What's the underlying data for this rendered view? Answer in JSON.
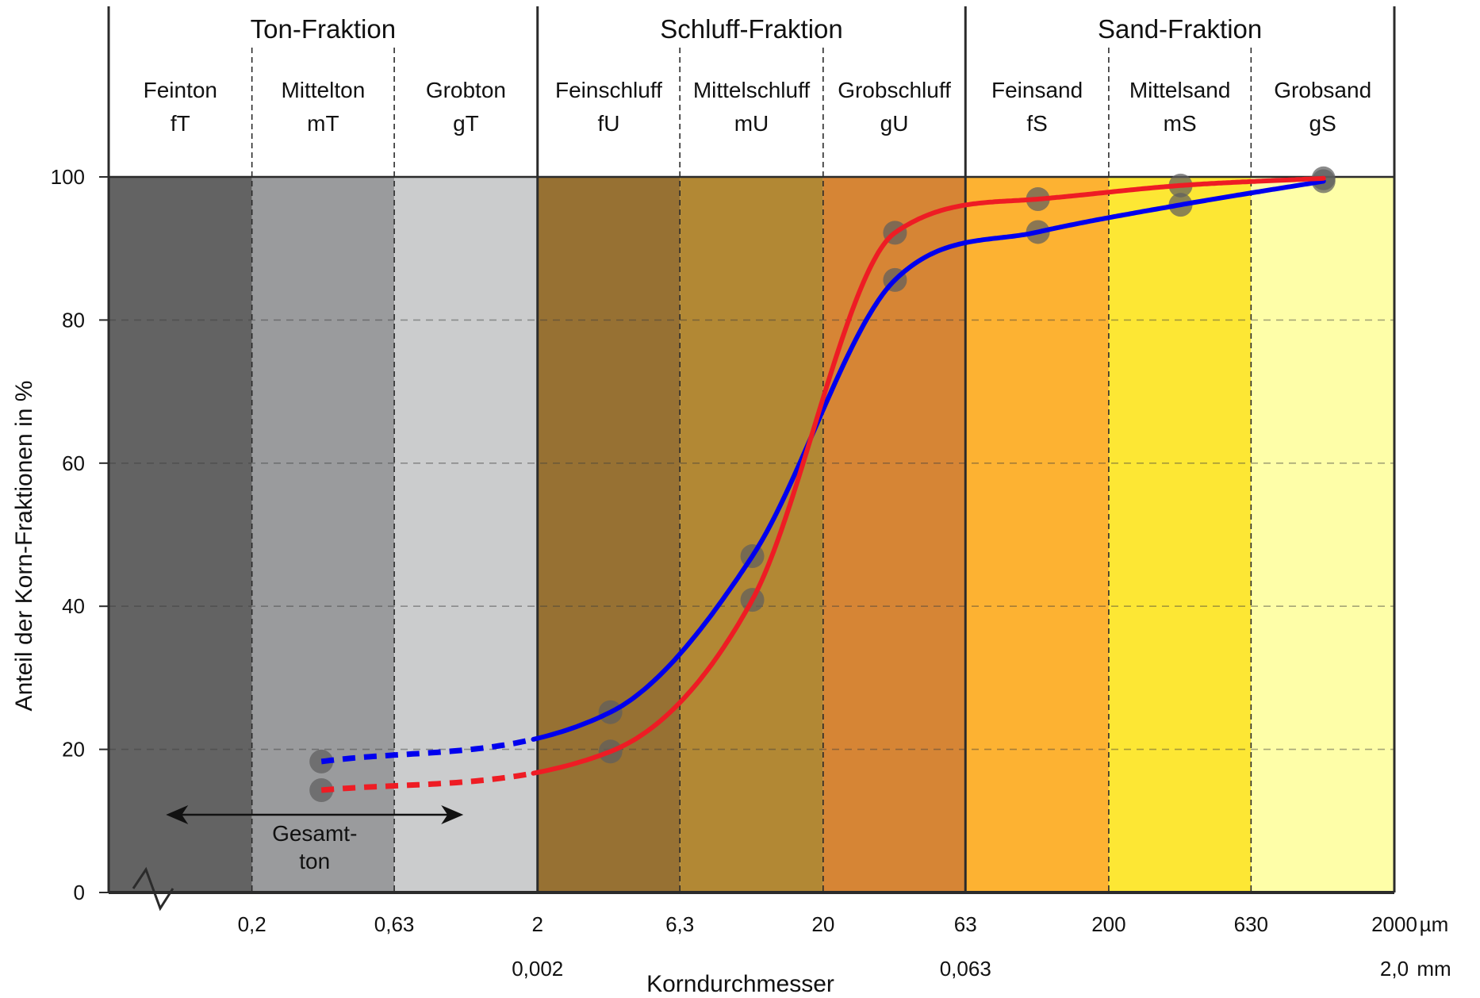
{
  "chart_data": {
    "type": "line",
    "title": "",
    "xlabel": "Korndurchmesser",
    "ylabel": "Anteil der Korn-Fraktionen in %",
    "ylim": [
      0,
      100
    ],
    "yticks": [
      0,
      20,
      40,
      60,
      80,
      100
    ],
    "grid": true,
    "x_scale": "log",
    "x_units": [
      "µm",
      "mm"
    ],
    "x_ticks_um": [
      "0,2",
      "0,63",
      "2",
      "6,3",
      "20",
      "63",
      "200",
      "630",
      "2000"
    ],
    "x_ticks_mm": [
      {
        "at_um": 2,
        "label": "0,002"
      },
      {
        "at_um": 63,
        "label": "0,063"
      },
      {
        "at_um": 2000,
        "label": "2,0"
      }
    ],
    "fractions": [
      {
        "name": "Ton-Fraktion",
        "from_um": 0.063,
        "to_um": 2
      },
      {
        "name": "Schluff-Fraktion",
        "from_um": 2,
        "to_um": 63
      },
      {
        "name": "Sand-Fraktion",
        "from_um": 63,
        "to_um": 2000
      }
    ],
    "subfractions": [
      {
        "name": "Feinton",
        "abbr": "fT",
        "from_um": 0.063,
        "to_um": 0.2,
        "color": "#636363"
      },
      {
        "name": "Mittelton",
        "abbr": "mT",
        "from_um": 0.2,
        "to_um": 0.63,
        "color": "#9a9b9d"
      },
      {
        "name": "Grobton",
        "abbr": "gT",
        "from_um": 0.63,
        "to_um": 2,
        "color": "#cbcccd"
      },
      {
        "name": "Feinschluff",
        "abbr": "fU",
        "from_um": 2,
        "to_um": 6.3,
        "color": "#977133"
      },
      {
        "name": "Mittelschluff",
        "abbr": "mU",
        "from_um": 6.3,
        "to_um": 20,
        "color": "#b28834"
      },
      {
        "name": "Grobschluff",
        "abbr": "gU",
        "from_um": 20,
        "to_um": 63,
        "color": "#d68535"
      },
      {
        "name": "Feinsand",
        "abbr": "fS",
        "from_um": 63,
        "to_um": 200,
        "color": "#fdb232"
      },
      {
        "name": "Mittelsand",
        "abbr": "mS",
        "from_um": 200,
        "to_um": 630,
        "color": "#fde734"
      },
      {
        "name": "Grobsand",
        "abbr": "gS",
        "from_um": 630,
        "to_um": 2000,
        "color": "#fefea8"
      }
    ],
    "series": [
      {
        "color": "#0000ee",
        "points": [
          {
            "x": 0.35,
            "y": 18.3
          },
          {
            "x": 3.6,
            "y": 25.2
          },
          {
            "x": 11.3,
            "y": 47
          },
          {
            "x": 35.7,
            "y": 85.6
          },
          {
            "x": 113,
            "y": 92.3
          },
          {
            "x": 357,
            "y": 96.1
          },
          {
            "x": 1130,
            "y": 99.4
          }
        ],
        "dotted_until_um": 2
      },
      {
        "color": "#ee1c24",
        "points": [
          {
            "x": 0.35,
            "y": 14.3
          },
          {
            "x": 3.6,
            "y": 19.7
          },
          {
            "x": 11.3,
            "y": 40.9
          },
          {
            "x": 35.7,
            "y": 92.2
          },
          {
            "x": 113,
            "y": 96.9
          },
          {
            "x": 357,
            "y": 98.8
          },
          {
            "x": 1130,
            "y": 99.8
          }
        ],
        "dotted_until_um": 2
      }
    ],
    "annotations": {
      "gesamtton": {
        "line1": "Gesamt-",
        "line2": "ton",
        "from_um": 0.1,
        "to_um": 1.1
      }
    }
  }
}
